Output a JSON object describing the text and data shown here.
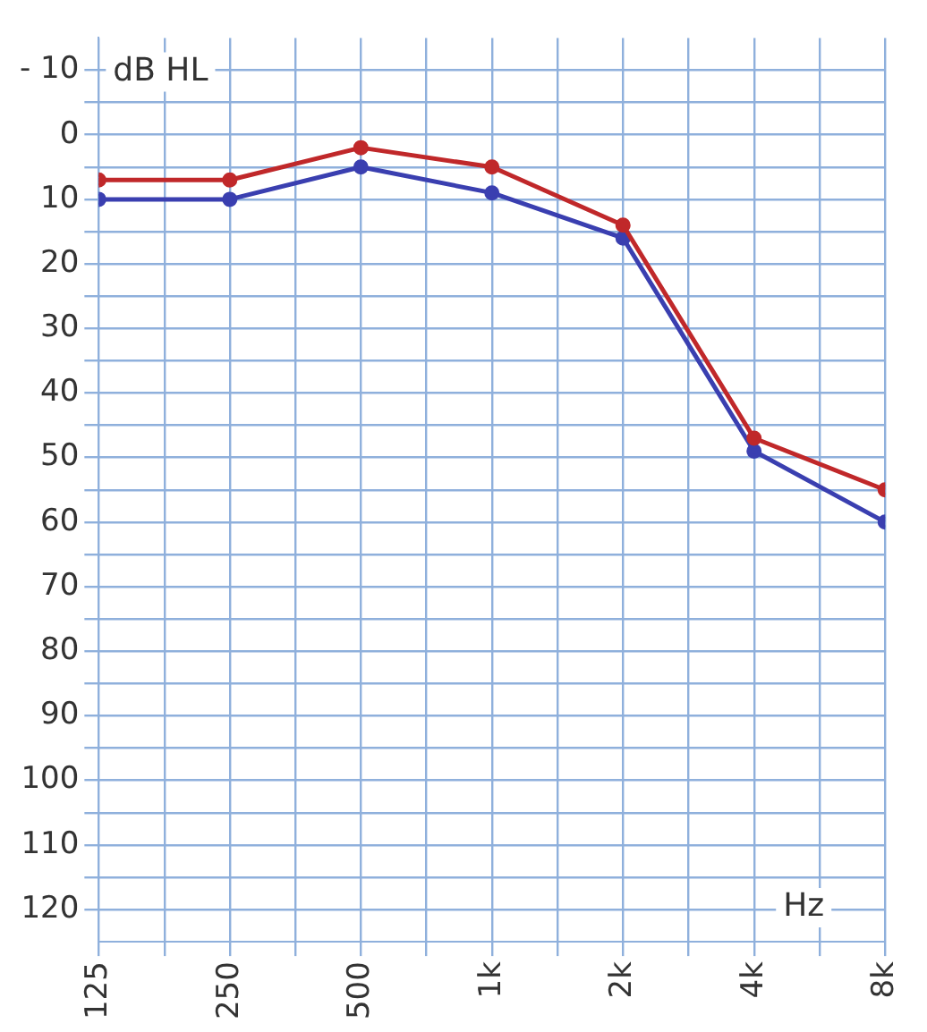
{
  "chart_data": {
    "type": "line",
    "x": [
      125,
      250,
      500,
      1000,
      2000,
      4000,
      8000
    ],
    "series": [
      {
        "color": "#c0282a",
        "values": [
          7,
          7,
          2,
          5,
          14,
          47,
          55
        ]
      },
      {
        "color": "#3a3fb0",
        "values": [
          10,
          10,
          5,
          9,
          16,
          49,
          60
        ]
      }
    ],
    "log": "x",
    "xlim": [
      125,
      8000
    ],
    "ylim": [
      125,
      -15
    ],
    "xticks": [
      125,
      {
        "value": 177,
        "label": null
      },
      250,
      {
        "value": 354,
        "label": null
      },
      500,
      {
        "value": 707,
        "label": null
      },
      {
        "value": 1000,
        "label": "1k"
      },
      {
        "value": 1414,
        "label": null
      },
      {
        "value": 2000,
        "label": "2k"
      },
      {
        "value": 2828,
        "label": null
      },
      {
        "value": 4000,
        "label": "4k"
      },
      {
        "value": 5657,
        "label": null
      },
      {
        "value": 8000,
        "label": "8k"
      }
    ],
    "yticks": [
      {
        "value": -10,
        "label": "- 10"
      },
      {
        "value": -5,
        "label": null
      },
      0,
      {
        "value": 5,
        "label": null
      },
      10,
      {
        "value": 15,
        "label": null
      },
      20,
      {
        "value": 25,
        "label": null
      },
      30,
      {
        "value": 35,
        "label": null
      },
      40,
      {
        "value": 45,
        "label": null
      },
      50,
      {
        "value": 55,
        "label": null
      },
      60,
      {
        "value": 65,
        "label": null
      },
      70,
      {
        "value": 75,
        "label": null
      },
      80,
      {
        "value": 85,
        "label": null
      },
      90,
      {
        "value": 95,
        "label": null
      },
      100,
      {
        "value": 105,
        "label": null
      },
      110,
      {
        "value": 115,
        "label": null
      },
      120
    ],
    "grid": true,
    "marker": "circle",
    "line_style": "solid",
    "legend": false,
    "annotations": [
      "dB HL",
      "Hz"
    ]
  }
}
